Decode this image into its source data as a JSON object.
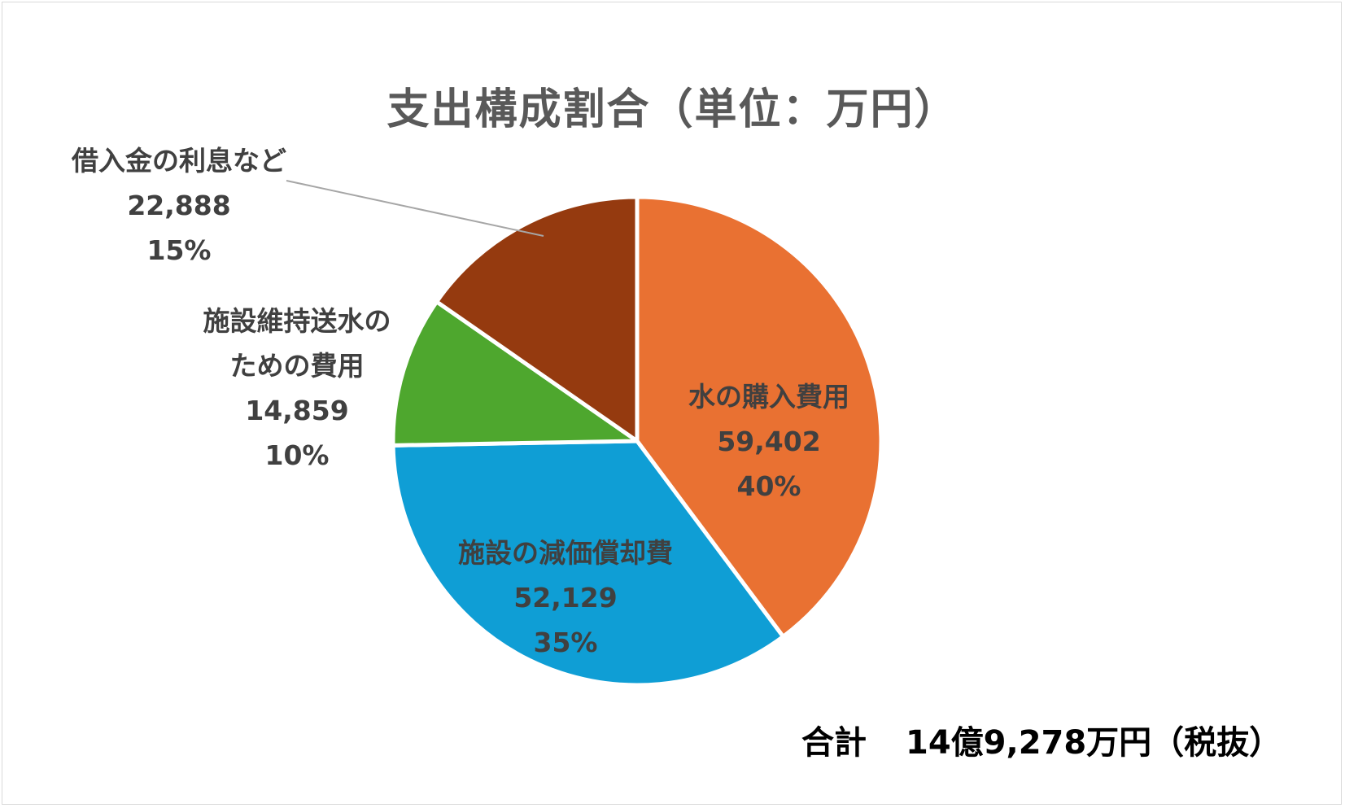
{
  "chart_data": {
    "type": "pie",
    "title": "支出構成割合（単位：万円）",
    "slices": [
      {
        "label_lines": [
          "水の購入費用"
        ],
        "value": 59402,
        "value_text": "59,402",
        "percent_text": "40%",
        "color": "#E97132"
      },
      {
        "label_lines": [
          "施設の減価償却費"
        ],
        "value": 52129,
        "value_text": "52,129",
        "percent_text": "35%",
        "color": "#0F9ED5"
      },
      {
        "label_lines": [
          "施設維持送水の",
          "ための費用"
        ],
        "value": 14859,
        "value_text": "14,859",
        "percent_text": "10%",
        "color": "#4EA72E"
      },
      {
        "label_lines": [
          "借入金の利息など"
        ],
        "value": 22888,
        "value_text": "22,888",
        "percent_text": "15%",
        "color": "#953A0F"
      }
    ],
    "start_angle_deg": 0,
    "direction": "clockwise",
    "legend": "none"
  },
  "total": {
    "label": "合計",
    "value_text": "14億9,278万円（税抜）"
  },
  "colors": {
    "title": "#595959",
    "labels": "#404040",
    "leader_line": "#a6a6a6",
    "slice_border": "#ffffff"
  }
}
